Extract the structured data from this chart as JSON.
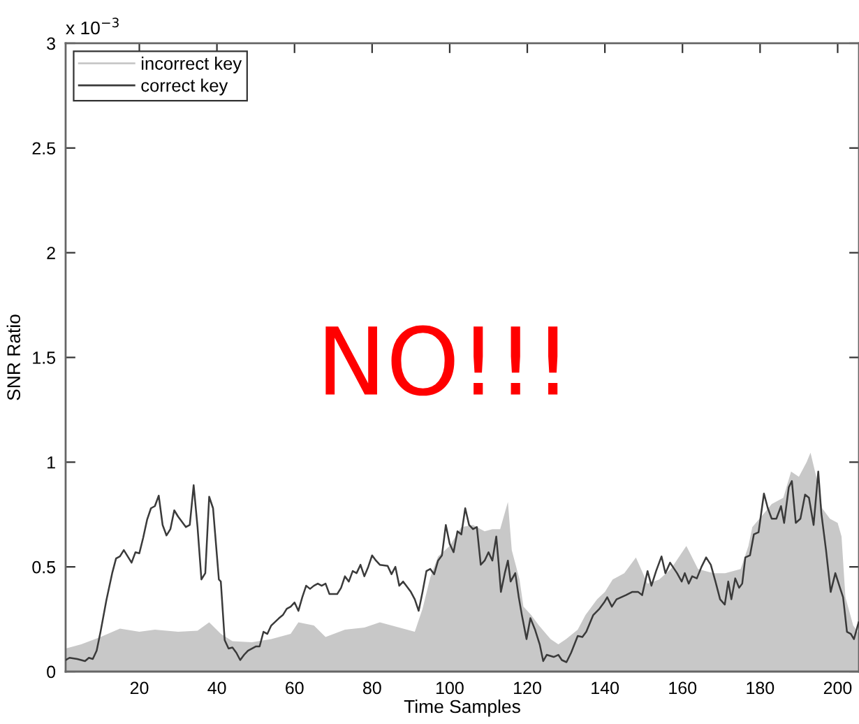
{
  "chart_data": {
    "type": "line",
    "xlabel": "Time Samples",
    "ylabel": "SNR Ratio",
    "annotations": [
      "x 10$^{−3}$",
      "NO!!!"
    ],
    "xlim": [
      1,
      205.5
    ],
    "xticks": [
      20,
      40,
      60,
      80,
      100,
      120,
      140,
      160,
      180,
      200
    ],
    "ylim": [
      0,
      3
    ],
    "yticks": [
      0,
      0.5,
      1,
      1.5,
      2,
      2.5,
      3
    ],
    "legend": "top left",
    "series": [
      {
        "name": "incorrect key",
        "type": "area",
        "color": "#c8c8c8",
        "x": [
          1,
          5,
          10,
          15,
          20,
          24,
          30,
          35,
          38,
          41,
          44,
          49,
          54,
          59,
          61,
          65,
          68,
          73,
          78,
          82,
          85,
          89,
          91,
          93,
          95,
          97,
          100,
          103,
          106,
          109,
          111,
          113,
          115,
          116,
          118,
          119,
          121,
          123,
          126,
          128,
          130,
          133,
          135,
          138,
          140,
          142,
          145,
          148,
          151,
          154,
          157,
          161,
          164,
          168,
          171,
          175,
          177,
          178,
          181,
          183,
          186,
          188,
          190,
          192,
          193,
          195,
          196,
          198,
          200,
          201,
          202,
          204,
          205.5
        ],
        "values": [
          0.11,
          0.13,
          0.165,
          0.205,
          0.19,
          0.2,
          0.19,
          0.195,
          0.235,
          0.18,
          0.145,
          0.14,
          0.155,
          0.18,
          0.235,
          0.22,
          0.165,
          0.2,
          0.21,
          0.235,
          0.22,
          0.2,
          0.19,
          0.3,
          0.45,
          0.55,
          0.6,
          0.69,
          0.7,
          0.67,
          0.68,
          0.68,
          0.81,
          0.58,
          0.44,
          0.31,
          0.27,
          0.22,
          0.155,
          0.13,
          0.155,
          0.2,
          0.27,
          0.345,
          0.38,
          0.44,
          0.47,
          0.545,
          0.42,
          0.44,
          0.49,
          0.6,
          0.49,
          0.47,
          0.47,
          0.49,
          0.6,
          0.69,
          0.755,
          0.8,
          0.83,
          0.955,
          0.93,
          1.0,
          1.045,
          0.89,
          0.78,
          0.73,
          0.71,
          0.645,
          0.355,
          0.22,
          0.18
        ]
      },
      {
        "name": "correct key",
        "color": "#3a3a3a",
        "x": [
          1,
          2,
          4,
          6,
          7,
          8,
          9,
          10,
          11.5,
          13,
          14,
          15,
          16,
          17,
          18,
          19,
          20,
          21,
          22,
          23,
          24,
          25,
          26,
          27,
          28,
          29,
          30,
          32,
          33,
          34,
          35,
          36,
          37,
          38,
          39,
          40.5,
          41,
          42,
          43,
          44,
          45,
          46,
          47,
          48,
          50,
          51,
          52,
          53,
          54,
          56,
          57,
          58,
          59,
          60,
          61,
          62,
          63,
          64,
          65,
          66,
          67,
          68,
          69,
          71,
          72,
          73,
          74,
          75,
          76,
          77,
          78,
          79,
          80,
          81,
          82,
          84,
          85,
          86,
          87,
          88,
          90,
          91,
          92,
          93,
          94,
          95,
          96,
          97,
          98,
          99,
          100,
          101,
          102,
          103,
          104,
          105,
          106,
          107,
          108,
          109,
          110,
          111,
          112,
          112.6,
          113.2,
          114.2,
          115,
          115.7,
          116.9,
          117.8,
          118.6,
          119.8,
          120.8,
          122,
          123.2,
          124.1,
          125,
          126.8,
          128,
          128.9,
          130.1,
          131.3,
          133,
          134.2,
          135.2,
          137,
          138.6,
          139.8,
          140.6,
          141.8,
          143,
          144.2,
          145.4,
          147,
          148.6,
          149.6,
          151,
          152,
          153.2,
          154.6,
          155.6,
          156.8,
          158.6,
          159.8,
          160.6,
          161.6,
          162.5,
          163.7,
          164.9,
          166.1,
          167.3,
          168.5,
          169.7,
          170.9,
          171.8,
          172.6,
          173.6,
          174.6,
          175.4,
          176.2,
          177.4,
          178.4,
          179.6,
          181,
          182,
          183,
          184.2,
          185.4,
          186.2,
          187.4,
          188.2,
          189.2,
          190.4,
          191.6,
          192.6,
          193.8,
          195,
          195.8,
          197,
          198.2,
          199.4,
          200.6,
          201.4,
          202.4,
          203.4,
          204.2,
          205.4
        ],
        "values": [
          0.055,
          0.066,
          0.06,
          0.05,
          0.066,
          0.06,
          0.1,
          0.19,
          0.34,
          0.47,
          0.54,
          0.55,
          0.58,
          0.55,
          0.52,
          0.57,
          0.565,
          0.64,
          0.725,
          0.78,
          0.79,
          0.84,
          0.7,
          0.65,
          0.68,
          0.77,
          0.74,
          0.69,
          0.7,
          0.89,
          0.69,
          0.44,
          0.47,
          0.835,
          0.78,
          0.44,
          0.43,
          0.15,
          0.11,
          0.115,
          0.09,
          0.055,
          0.08,
          0.1,
          0.12,
          0.12,
          0.19,
          0.18,
          0.22,
          0.255,
          0.27,
          0.3,
          0.31,
          0.33,
          0.29,
          0.355,
          0.41,
          0.395,
          0.41,
          0.42,
          0.41,
          0.42,
          0.37,
          0.37,
          0.4,
          0.455,
          0.43,
          0.48,
          0.47,
          0.51,
          0.455,
          0.5,
          0.555,
          0.53,
          0.51,
          0.505,
          0.465,
          0.5,
          0.41,
          0.43,
          0.38,
          0.345,
          0.29,
          0.38,
          0.48,
          0.49,
          0.465,
          0.53,
          0.555,
          0.7,
          0.61,
          0.57,
          0.67,
          0.655,
          0.78,
          0.7,
          0.68,
          0.69,
          0.51,
          0.53,
          0.57,
          0.53,
          0.645,
          0.52,
          0.38,
          0.47,
          0.53,
          0.43,
          0.47,
          0.355,
          0.27,
          0.155,
          0.255,
          0.2,
          0.13,
          0.05,
          0.08,
          0.07,
          0.08,
          0.055,
          0.045,
          0.09,
          0.17,
          0.165,
          0.19,
          0.27,
          0.3,
          0.33,
          0.355,
          0.31,
          0.345,
          0.355,
          0.365,
          0.38,
          0.38,
          0.365,
          0.48,
          0.41,
          0.48,
          0.55,
          0.47,
          0.52,
          0.47,
          0.43,
          0.47,
          0.42,
          0.455,
          0.445,
          0.5,
          0.545,
          0.51,
          0.43,
          0.345,
          0.32,
          0.43,
          0.345,
          0.445,
          0.4,
          0.42,
          0.545,
          0.555,
          0.655,
          0.665,
          0.85,
          0.78,
          0.73,
          0.73,
          0.79,
          0.71,
          0.88,
          0.91,
          0.71,
          0.73,
          0.845,
          0.83,
          0.7,
          0.955,
          0.755,
          0.58,
          0.38,
          0.47,
          0.4,
          0.355,
          0.19,
          0.18,
          0.155,
          0.235
        ]
      }
    ]
  }
}
